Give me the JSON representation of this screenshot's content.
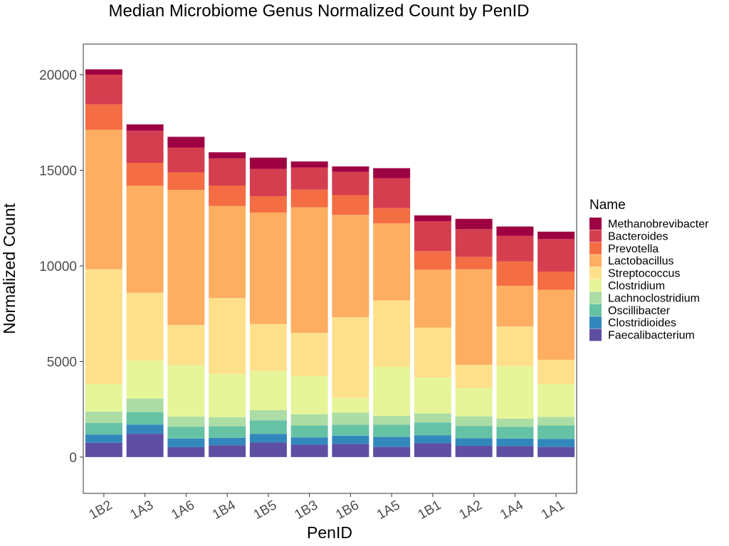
{
  "chart_data": {
    "type": "bar",
    "stacked": true,
    "title": "Median Microbiome Genus Normalized Count by PenID",
    "xlabel": "PenID",
    "ylabel": "Normalized Count",
    "ylim": [
      -1900,
      21600
    ],
    "yticks": [
      0,
      5000,
      10000,
      15000,
      20000
    ],
    "ytick_labels": [
      "0",
      "5000",
      "10000",
      "15000",
      "20000"
    ],
    "grid": false,
    "legend": {
      "title": "Name",
      "position": "right"
    },
    "categories": [
      "1B2",
      "1A3",
      "1A6",
      "1B4",
      "1B5",
      "1B3",
      "1B6",
      "1A5",
      "1B1",
      "1A2",
      "1A4",
      "1A1"
    ],
    "series": [
      {
        "name": "Faecalibacterium",
        "color": "#5e4fa2",
        "values": [
          750,
          1220,
          520,
          620,
          760,
          650,
          690,
          530,
          720,
          590,
          580,
          530
        ]
      },
      {
        "name": "Clostridioides",
        "color": "#3288bd",
        "values": [
          420,
          480,
          450,
          390,
          450,
          380,
          430,
          520,
          410,
          390,
          390,
          420
        ]
      },
      {
        "name": "Oscillibacter",
        "color": "#66c2a5",
        "values": [
          610,
          640,
          620,
          600,
          710,
          620,
          570,
          640,
          680,
          650,
          610,
          700
        ]
      },
      {
        "name": "Lachnoclostridium",
        "color": "#abdda4",
        "values": [
          600,
          720,
          530,
          480,
          530,
          590,
          630,
          460,
          470,
          500,
          430,
          450
        ]
      },
      {
        "name": "Clostridium",
        "color": "#e6f598",
        "values": [
          1430,
          1980,
          2680,
          2260,
          2060,
          1990,
          770,
          2570,
          1870,
          1470,
          2740,
          1720
        ]
      },
      {
        "name": "Streptococcus",
        "color": "#fee08b",
        "values": [
          6020,
          3560,
          2110,
          3970,
          2450,
          2270,
          4230,
          3470,
          2620,
          1230,
          2080,
          1270
        ]
      },
      {
        "name": "Lactobacillus",
        "color": "#fdae61",
        "values": [
          7290,
          5590,
          7060,
          4810,
          5830,
          6560,
          5350,
          4040,
          3030,
          4990,
          2130,
          3660
        ]
      },
      {
        "name": "Prevotella",
        "color": "#f46d43",
        "values": [
          1330,
          1200,
          920,
          1070,
          850,
          930,
          1030,
          790,
          970,
          650,
          1270,
          950
        ]
      },
      {
        "name": "Bacteroides",
        "color": "#d53e4f",
        "values": [
          1550,
          1680,
          1300,
          1420,
          1430,
          1150,
          1220,
          1570,
          1570,
          1450,
          1350,
          1700
        ]
      },
      {
        "name": "Methanobrevibacter",
        "color": "#9e0142",
        "values": [
          280,
          330,
          560,
          320,
          590,
          320,
          280,
          520,
          300,
          540,
          480,
          390
        ]
      }
    ],
    "legend_order": [
      "Methanobrevibacter",
      "Bacteroides",
      "Prevotella",
      "Lactobacillus",
      "Streptococcus",
      "Clostridium",
      "Lachnoclostridium",
      "Oscillibacter",
      "Clostridioides",
      "Faecalibacterium"
    ]
  }
}
